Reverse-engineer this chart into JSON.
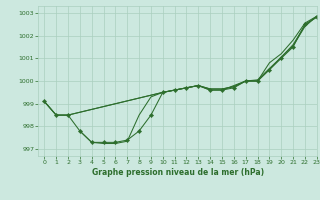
{
  "title": "Graphe pression niveau de la mer (hPa)",
  "bg_color": "#cce8df",
  "line_color": "#2d6e2d",
  "grid_color": "#aacfbf",
  "xlim": [
    -0.5,
    23
  ],
  "ylim": [
    996.7,
    1003.3
  ],
  "yticks": [
    997,
    998,
    999,
    1000,
    1001,
    1002,
    1003
  ],
  "xticks": [
    0,
    1,
    2,
    3,
    4,
    5,
    6,
    7,
    8,
    9,
    10,
    11,
    12,
    13,
    14,
    15,
    16,
    17,
    18,
    19,
    20,
    21,
    22,
    23
  ],
  "series_main": {
    "x": [
      0,
      1,
      2,
      3,
      4,
      5,
      6,
      7,
      8,
      9,
      10,
      11,
      12,
      13,
      14,
      15,
      16,
      17,
      18,
      19,
      20,
      21,
      22,
      23
    ],
    "y": [
      999.1,
      998.5,
      998.5,
      997.8,
      997.3,
      997.3,
      997.3,
      997.4,
      997.8,
      998.5,
      999.5,
      999.6,
      999.7,
      999.8,
      999.6,
      999.6,
      999.7,
      1000.0,
      1000.0,
      1000.5,
      1001.0,
      1001.5,
      1002.5,
      1002.8
    ]
  },
  "series_upper1": {
    "x": [
      0,
      1,
      2,
      10,
      11,
      12,
      13,
      14,
      15,
      16,
      17,
      18,
      19,
      20,
      21,
      22,
      23
    ],
    "y": [
      999.1,
      998.5,
      998.5,
      999.5,
      999.6,
      999.7,
      999.8,
      999.6,
      999.6,
      999.8,
      1000.0,
      1000.0,
      1000.8,
      1001.2,
      1001.8,
      1002.55,
      1002.85
    ]
  },
  "series_upper2": {
    "x": [
      0,
      1,
      2,
      10,
      11,
      12,
      13,
      14,
      15,
      16,
      17,
      18,
      19,
      20,
      21,
      22,
      23
    ],
    "y": [
      999.1,
      998.5,
      998.5,
      999.5,
      999.6,
      999.7,
      999.8,
      999.65,
      999.65,
      999.75,
      1000.0,
      1000.05,
      1000.55,
      1001.05,
      1001.6,
      1002.45,
      1002.85
    ]
  },
  "series_lower": {
    "x": [
      3,
      4,
      5,
      6,
      7,
      8,
      9,
      10,
      11,
      12,
      13,
      14,
      15,
      16,
      17,
      18,
      19,
      20,
      21,
      22,
      23
    ],
    "y": [
      997.8,
      997.3,
      997.25,
      997.25,
      997.35,
      998.5,
      999.3,
      999.5,
      999.6,
      999.7,
      999.8,
      999.65,
      999.65,
      999.75,
      1000.0,
      1000.0,
      1000.5,
      1001.05,
      1001.55,
      1002.4,
      1002.85
    ]
  }
}
